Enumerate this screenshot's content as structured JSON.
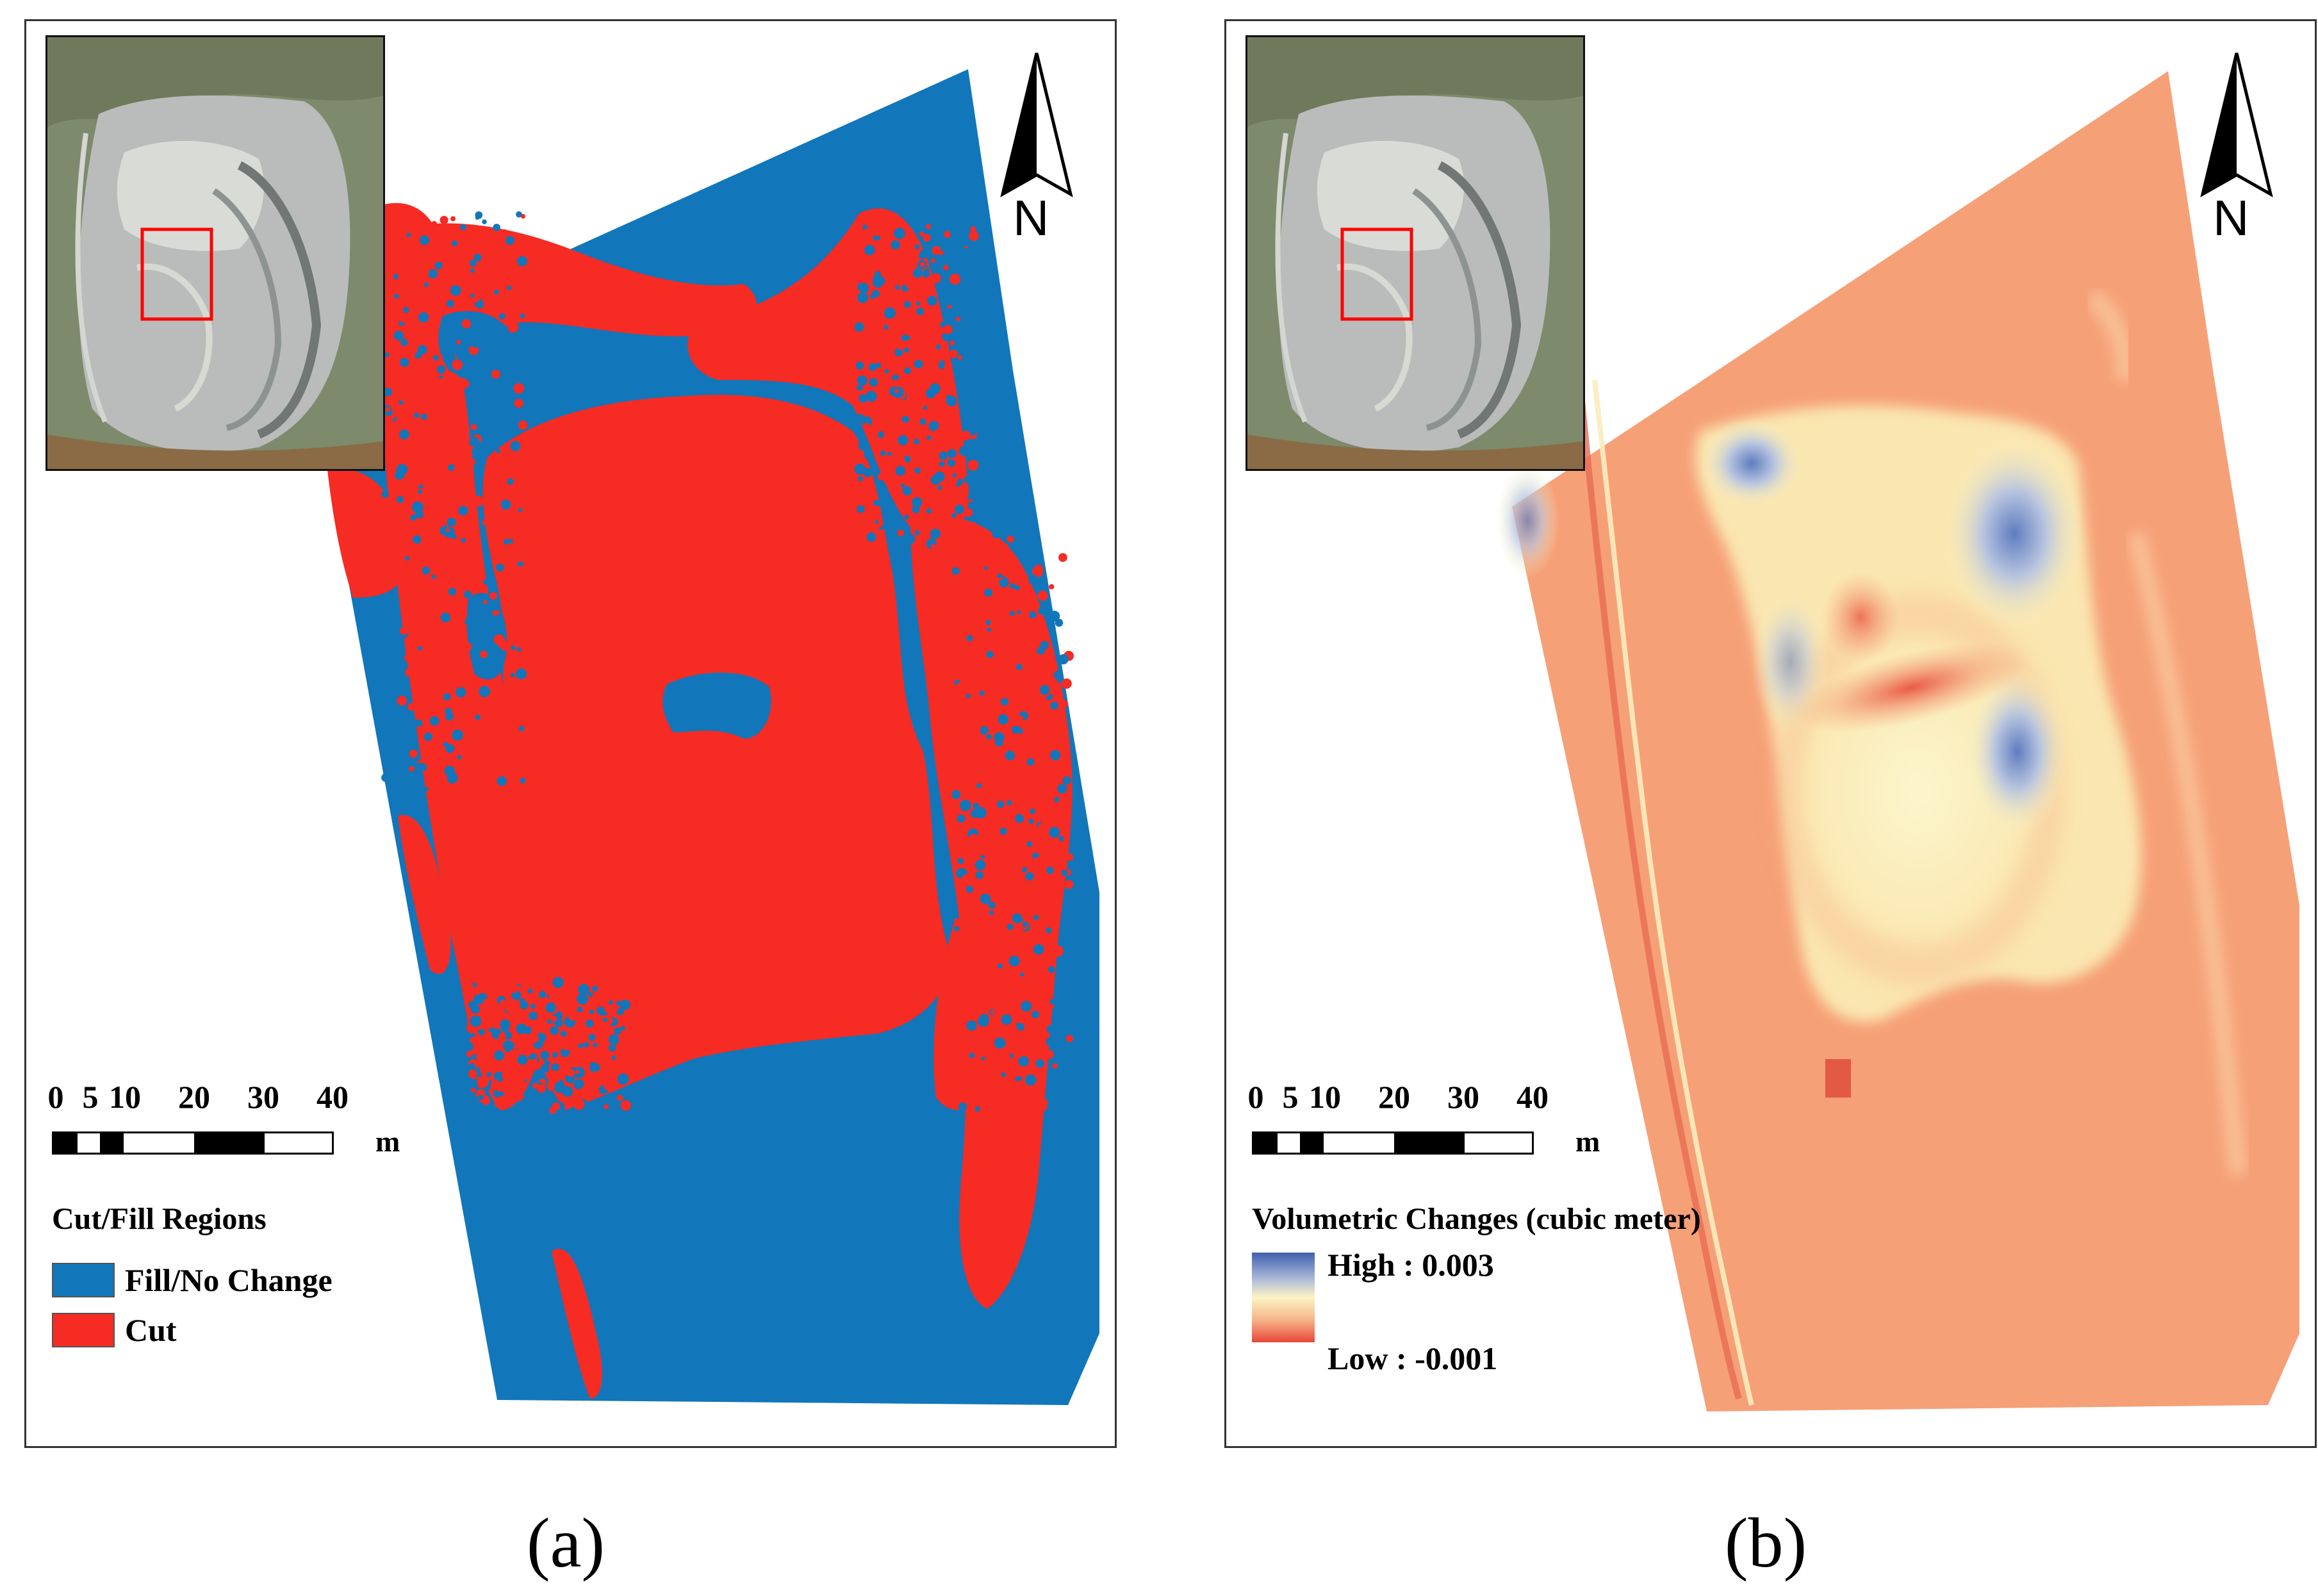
{
  "colors": {
    "fill_blue": "#1276ba",
    "cut_red": "#f52b24",
    "volume_base": "#f6a077",
    "volume_high": "#4a6bb8",
    "volume_mid": "#fbf4c4",
    "volume_low": "#e8473b",
    "inset_highlight": "#ff0000"
  },
  "scale_bar": {
    "ticks": [
      "0",
      "5",
      "10",
      "20",
      "30",
      "40"
    ],
    "unit": "m"
  },
  "north_arrow": {
    "label": "N"
  },
  "panel_a": {
    "caption": "(a)",
    "legend_title": "Cut/Fill Regions",
    "legend_items": [
      {
        "label": "Fill/No Change",
        "color": "#1276ba"
      },
      {
        "label": "Cut",
        "color": "#f52b24"
      }
    ]
  },
  "panel_b": {
    "caption": "(b)",
    "legend_title": "Volumetric Changes (cubic meter)",
    "high_label": "High : 0.003",
    "low_label": "Low : -0.001"
  }
}
